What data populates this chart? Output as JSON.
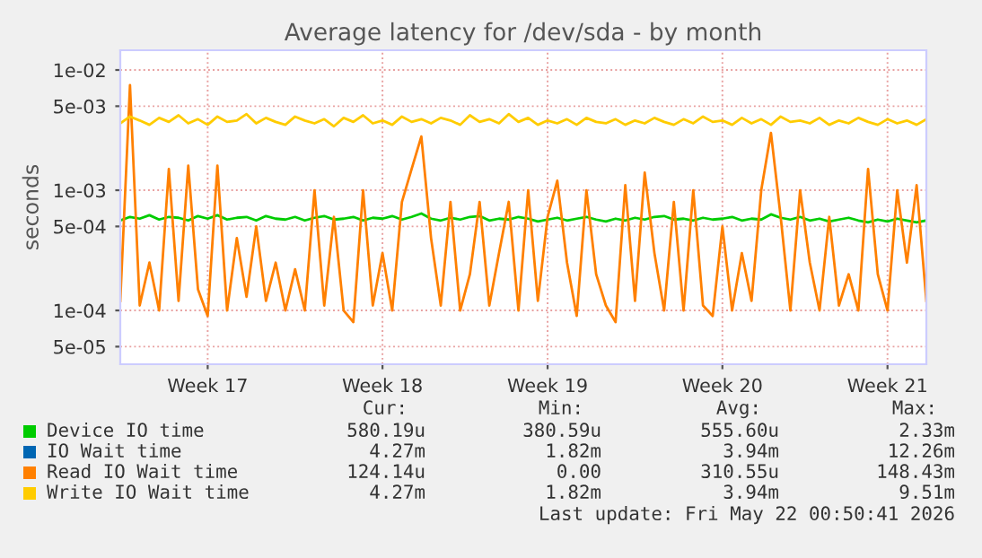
{
  "chart_data": {
    "type": "line",
    "title": "Average latency for /dev/sda - by month",
    "ylabel": "seconds",
    "log": "y",
    "grid": true,
    "legend": "bottom",
    "marker": "none",
    "line_style": "solid",
    "ylim": [
      3.57e-05,
      0.0146
    ],
    "yticks": [
      {
        "value": 5e-05,
        "label": "5e-05"
      },
      {
        "value": 0.0001,
        "label": "1e-04"
      },
      {
        "value": 0.0005,
        "label": "5e-04"
      },
      {
        "value": 0.001,
        "label": "1e-03"
      },
      {
        "value": 0.005,
        "label": "5e-03"
      },
      {
        "value": 0.01,
        "label": "1e-02"
      }
    ],
    "categories": [
      null,
      null,
      null,
      null,
      null,
      null,
      null,
      null,
      null,
      "Week 17",
      null,
      null,
      null,
      null,
      null,
      null,
      null,
      null,
      null,
      null,
      null,
      null,
      null,
      null,
      null,
      null,
      null,
      "Week 18",
      null,
      null,
      null,
      null,
      null,
      null,
      null,
      null,
      null,
      null,
      null,
      null,
      null,
      null,
      null,
      null,
      "Week 19",
      null,
      null,
      null,
      null,
      null,
      null,
      null,
      null,
      null,
      null,
      null,
      null,
      null,
      null,
      null,
      null,
      null,
      "Week 20",
      null,
      null,
      null,
      null,
      null,
      null,
      null,
      null,
      null,
      null,
      null,
      null,
      null,
      null,
      null,
      null,
      "Week 21",
      null,
      null,
      null,
      null
    ],
    "series": [
      {
        "name": "Device IO time",
        "color": "#00cc00",
        "values": [
          0.00056,
          0.0006,
          0.00058,
          0.00062,
          0.00057,
          0.0006,
          0.00059,
          0.00056,
          0.00061,
          0.00058,
          0.00062,
          0.00057,
          0.00059,
          0.0006,
          0.00056,
          0.00061,
          0.00058,
          0.00057,
          0.0006,
          0.00056,
          0.00059,
          0.00061,
          0.00057,
          0.00058,
          0.0006,
          0.00056,
          0.00059,
          0.00058,
          0.00061,
          0.00057,
          0.0006,
          0.00064,
          0.00058,
          0.00056,
          0.00059,
          0.00057,
          0.0006,
          0.00061,
          0.00056,
          0.00058,
          0.00057,
          0.0006,
          0.00058,
          0.00055,
          0.00057,
          0.00059,
          0.00056,
          0.00058,
          0.0006,
          0.00057,
          0.00055,
          0.00058,
          0.00056,
          0.00059,
          0.00057,
          0.0006,
          0.00061,
          0.00057,
          0.00058,
          0.00056,
          0.00059,
          0.00057,
          0.00058,
          0.0006,
          0.00056,
          0.00058,
          0.00057,
          0.00063,
          0.00059,
          0.00057,
          0.0006,
          0.00056,
          0.00058,
          0.00055,
          0.00057,
          0.00059,
          0.00056,
          0.00054,
          0.00057,
          0.00055,
          0.00058,
          0.00056,
          0.00054,
          0.00056
        ]
      },
      {
        "name": "IO Wait time",
        "color": "#0066b3",
        "values": [
          null,
          null,
          null,
          null,
          null,
          null,
          null,
          null,
          null,
          null,
          null,
          null,
          null,
          null,
          null,
          null,
          null,
          null,
          null,
          null,
          null,
          null,
          null,
          null,
          null,
          null,
          null,
          null,
          null,
          null,
          null,
          null,
          null,
          null,
          null,
          null,
          null,
          null,
          null,
          null,
          null,
          null,
          null,
          null,
          null,
          null,
          null,
          null,
          null,
          null,
          null,
          null,
          null,
          null,
          null,
          null,
          null,
          null,
          null,
          null,
          null,
          null,
          null,
          null,
          null,
          null,
          null,
          null,
          null,
          null,
          null,
          null,
          null,
          null,
          null,
          null,
          null,
          null,
          null,
          null,
          null,
          null,
          null,
          null
        ]
      },
      {
        "name": "Read IO Wait time",
        "color": "#ff8000",
        "values": [
          0.00012,
          0.0075,
          0.00011,
          0.00025,
          0.0001,
          0.0015,
          0.00012,
          0.0016,
          0.00015,
          9e-05,
          0.0016,
          0.0001,
          0.0004,
          0.00013,
          0.0005,
          0.00012,
          0.00025,
          0.0001,
          0.00022,
          0.0001,
          0.001,
          0.00011,
          0.0006,
          0.0001,
          8e-05,
          0.001,
          0.00011,
          0.0003,
          0.0001,
          0.0008,
          0.0015,
          0.0028,
          0.0004,
          0.00011,
          0.0008,
          0.0001,
          0.0002,
          0.0008,
          0.00011,
          0.0003,
          0.0008,
          0.0001,
          0.001,
          0.00012,
          0.0006,
          0.0012,
          0.00025,
          9e-05,
          0.001,
          0.0002,
          0.00011,
          8e-05,
          0.0011,
          0.00012,
          0.0014,
          0.0003,
          0.0001,
          0.0008,
          0.0001,
          0.001,
          0.00011,
          9e-05,
          0.0005,
          0.0001,
          0.0003,
          0.00012,
          0.001,
          0.003,
          0.0006,
          0.0001,
          0.001,
          0.00025,
          0.0001,
          0.0006,
          0.00011,
          0.0002,
          0.0001,
          0.0015,
          0.0002,
          0.0001,
          0.001,
          0.00025,
          0.0011,
          0.00012
        ]
      },
      {
        "name": "Write IO Wait time",
        "color": "#ffcc00",
        "values": [
          0.0036,
          0.0041,
          0.0038,
          0.0035,
          0.004,
          0.0037,
          0.0042,
          0.0036,
          0.0039,
          0.0035,
          0.0041,
          0.0037,
          0.0038,
          0.0043,
          0.0036,
          0.004,
          0.0037,
          0.0035,
          0.0041,
          0.0038,
          0.0036,
          0.0039,
          0.0034,
          0.004,
          0.0037,
          0.0042,
          0.0036,
          0.0038,
          0.0035,
          0.0041,
          0.0037,
          0.0039,
          0.0036,
          0.004,
          0.0038,
          0.0035,
          0.0042,
          0.0037,
          0.0039,
          0.0036,
          0.0043,
          0.0037,
          0.004,
          0.0035,
          0.0038,
          0.0036,
          0.0039,
          0.0035,
          0.004,
          0.0037,
          0.0036,
          0.0039,
          0.0035,
          0.0038,
          0.0036,
          0.004,
          0.0037,
          0.0035,
          0.0039,
          0.0036,
          0.0041,
          0.0037,
          0.0038,
          0.0035,
          0.004,
          0.0036,
          0.0039,
          0.0035,
          0.0041,
          0.0037,
          0.0038,
          0.0036,
          0.004,
          0.0035,
          0.0038,
          0.0036,
          0.004,
          0.0037,
          0.0035,
          0.0039,
          0.0036,
          0.0038,
          0.0035,
          0.0039
        ]
      }
    ],
    "annotations": [
      "Cur:",
      "Min:",
      "Avg:",
      "Max:",
      "580.19u",
      "380.59u",
      "555.60u",
      "2.33m",
      "4.27m",
      "1.82m",
      "3.94m",
      "12.26m",
      "124.14u",
      "0.00",
      "310.55u",
      "148.43m",
      "4.27m",
      "1.82m",
      "3.94m",
      "9.51m",
      "Last update: Fri May 22 00:50:41 2026"
    ]
  }
}
